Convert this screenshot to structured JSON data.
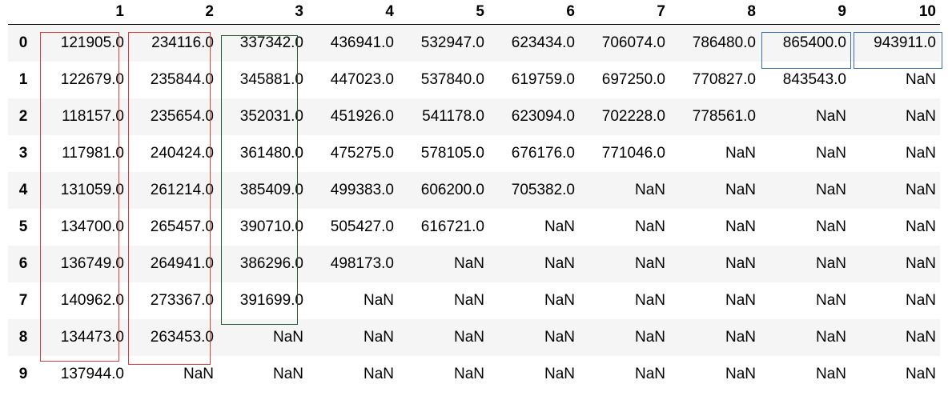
{
  "table": {
    "columns": [
      "",
      "1",
      "2",
      "3",
      "4",
      "5",
      "6",
      "7",
      "8",
      "9",
      "10"
    ],
    "rows": [
      {
        "index": "0",
        "values": [
          "121905.0",
          "234116.0",
          "337342.0",
          "436941.0",
          "532947.0",
          "623434.0",
          "706074.0",
          "786480.0",
          "865400.0",
          "943911.0"
        ]
      },
      {
        "index": "1",
        "values": [
          "122679.0",
          "235844.0",
          "345881.0",
          "447023.0",
          "537840.0",
          "619759.0",
          "697250.0",
          "770827.0",
          "843543.0",
          "NaN"
        ]
      },
      {
        "index": "2",
        "values": [
          "118157.0",
          "235654.0",
          "352031.0",
          "451926.0",
          "541178.0",
          "623094.0",
          "702228.0",
          "778561.0",
          "NaN",
          "NaN"
        ]
      },
      {
        "index": "3",
        "values": [
          "117981.0",
          "240424.0",
          "361480.0",
          "475275.0",
          "578105.0",
          "676176.0",
          "771046.0",
          "NaN",
          "NaN",
          "NaN"
        ]
      },
      {
        "index": "4",
        "values": [
          "131059.0",
          "261214.0",
          "385409.0",
          "499383.0",
          "606200.0",
          "705382.0",
          "NaN",
          "NaN",
          "NaN",
          "NaN"
        ]
      },
      {
        "index": "5",
        "values": [
          "134700.0",
          "265457.0",
          "390710.0",
          "505427.0",
          "616721.0",
          "NaN",
          "NaN",
          "NaN",
          "NaN",
          "NaN"
        ]
      },
      {
        "index": "6",
        "values": [
          "136749.0",
          "264941.0",
          "386296.0",
          "498173.0",
          "NaN",
          "NaN",
          "NaN",
          "NaN",
          "NaN",
          "NaN"
        ]
      },
      {
        "index": "7",
        "values": [
          "140962.0",
          "273367.0",
          "391699.0",
          "NaN",
          "NaN",
          "NaN",
          "NaN",
          "NaN",
          "NaN",
          "NaN"
        ]
      },
      {
        "index": "8",
        "values": [
          "134473.0",
          "263453.0",
          "NaN",
          "NaN",
          "NaN",
          "NaN",
          "NaN",
          "NaN",
          "NaN",
          "NaN"
        ]
      },
      {
        "index": "9",
        "values": [
          "137944.0",
          "NaN",
          "NaN",
          "NaN",
          "NaN",
          "NaN",
          "NaN",
          "NaN",
          "NaN",
          "NaN"
        ]
      }
    ]
  },
  "highlight_colors": {
    "red": "#e03a3a",
    "green": "#2b5a3a",
    "blue": "#3c6fb0"
  }
}
